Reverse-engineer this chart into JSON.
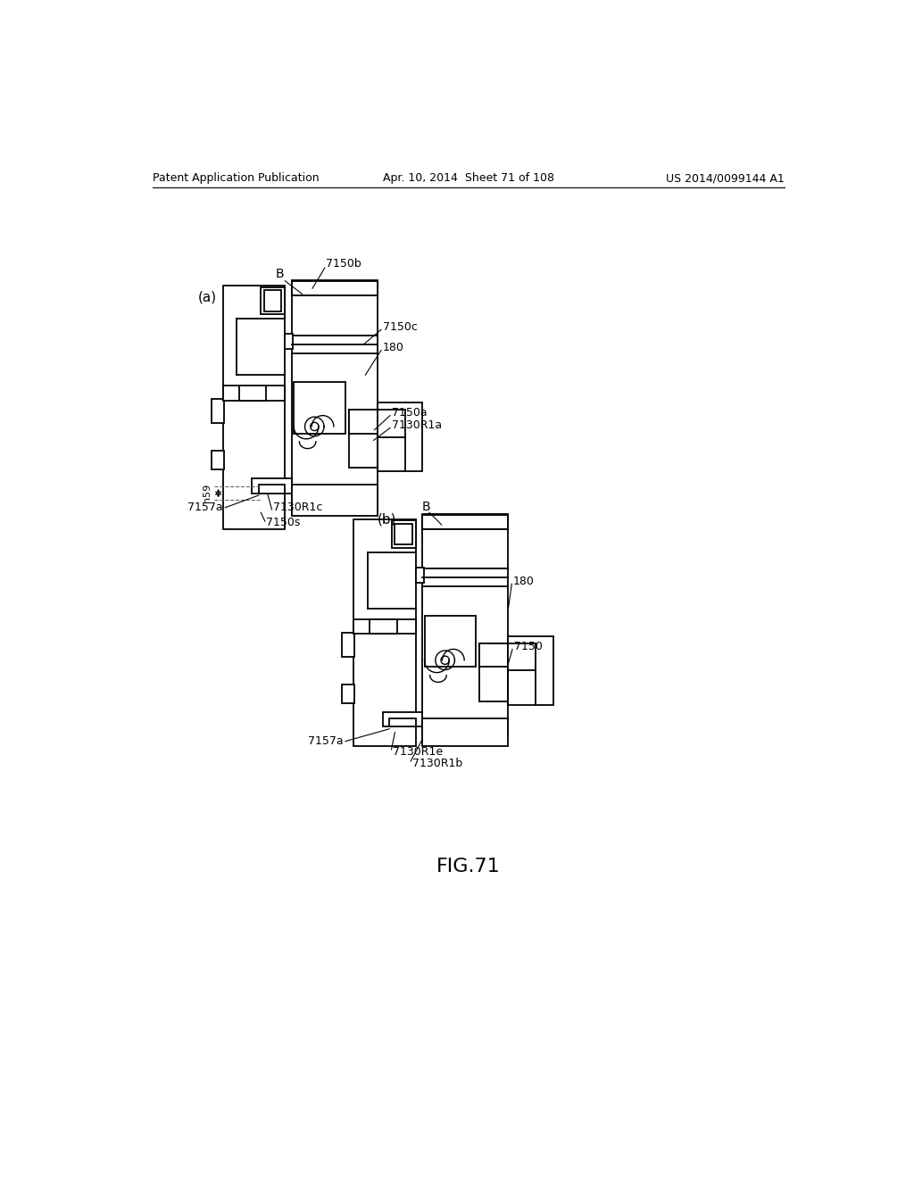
{
  "bg_color": "#ffffff",
  "header_left": "Patent Application Publication",
  "header_center": "Apr. 10, 2014  Sheet 71 of 108",
  "header_right": "US 2014/0099144 A1",
  "figure_label": "FIG.71"
}
